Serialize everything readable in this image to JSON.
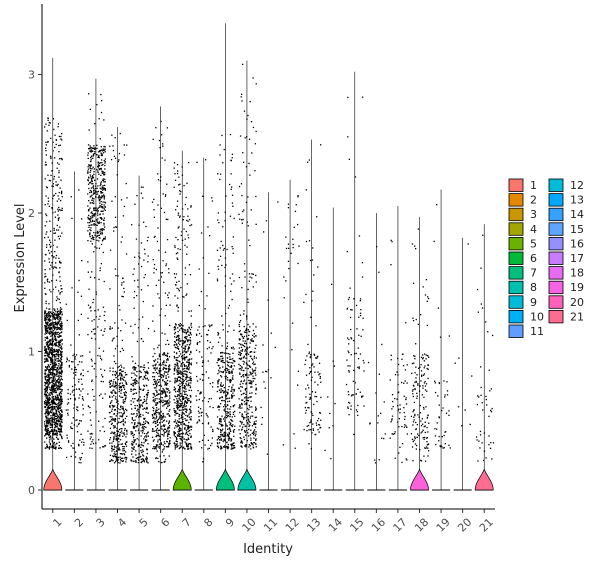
{
  "chart_data": {
    "type": "violin",
    "xlabel": "Identity",
    "ylabel": "Expression Level",
    "ylim": [
      -0.15,
      3.5
    ],
    "y_ticks": [
      0,
      1,
      2,
      3
    ],
    "grid": false,
    "legend_position": "right",
    "categories": [
      "1",
      "2",
      "3",
      "4",
      "5",
      "6",
      "7",
      "8",
      "9",
      "10",
      "11",
      "12",
      "13",
      "14",
      "15",
      "16",
      "17",
      "18",
      "19",
      "20",
      "21"
    ],
    "colors": [
      "#F8766D",
      "#E58700",
      "#C99800",
      "#A3A500",
      "#6BB100",
      "#00BA38",
      "#00BF7D",
      "#00C0AF",
      "#00BCD8",
      "#00B0F6",
      "#619CFF",
      "#B983FF",
      "#E76BF3",
      "#FD61D1",
      "#FF67A4",
      "#F8766D",
      "#E58700",
      "#C99800",
      "#A3A500",
      "#6BB100",
      "#00BA38"
    ],
    "legend_colors": [
      "#F8766D",
      "#E58700",
      "#C99800",
      "#A3A500",
      "#6BB100",
      "#00BA38",
      "#00BF7D",
      "#00C0AF",
      "#00BCD8",
      "#00B0F6",
      "#619CFF",
      "#00BCD8",
      "#00A9FF",
      "#35A2FF",
      "#5CA6FF",
      "#9590FF",
      "#C77CFF",
      "#E76BF3",
      "#F564E3",
      "#FF62BC",
      "#FF6C91"
    ],
    "series": [
      {
        "name": "1",
        "violin_top": 3.12,
        "bulb_height": 0.15,
        "bulb_width": 0.42,
        "n_points": 1500,
        "spread": [
          0.3,
          2.7
        ],
        "dense": [
          0.4,
          1.3
        ],
        "color": "#F8766D"
      },
      {
        "name": "2",
        "violin_top": 2.3,
        "bulb_height": 0.0,
        "bulb_width": 0.0,
        "n_points": 130,
        "spread": [
          0.2,
          2.3
        ],
        "dense": [
          0.3,
          1.0
        ],
        "color": "#E58700"
      },
      {
        "name": "3",
        "violin_top": 2.97,
        "bulb_height": 0.0,
        "bulb_width": 0.0,
        "n_points": 520,
        "spread": [
          0.3,
          2.9
        ],
        "dense": [
          1.8,
          2.5
        ],
        "color": "#C99800"
      },
      {
        "name": "4",
        "violin_top": 2.62,
        "bulb_height": 0.0,
        "bulb_width": 0.0,
        "n_points": 420,
        "spread": [
          0.2,
          2.6
        ],
        "dense": [
          0.2,
          0.9
        ],
        "color": "#B79F00"
      },
      {
        "name": "5",
        "violin_top": 2.27,
        "bulb_height": 0.0,
        "bulb_width": 0.0,
        "n_points": 360,
        "spread": [
          0.2,
          2.2
        ],
        "dense": [
          0.2,
          0.9
        ],
        "color": "#9DA700"
      },
      {
        "name": "6",
        "violin_top": 2.77,
        "bulb_height": 0.0,
        "bulb_width": 0.0,
        "n_points": 470,
        "spread": [
          0.2,
          2.7
        ],
        "dense": [
          0.3,
          1.0
        ],
        "color": "#00BA38"
      },
      {
        "name": "7",
        "violin_top": 2.45,
        "bulb_height": 0.15,
        "bulb_width": 0.42,
        "n_points": 700,
        "spread": [
          0.3,
          2.4
        ],
        "dense": [
          0.3,
          1.2
        ],
        "color": "#5BB300"
      },
      {
        "name": "8",
        "violin_top": 2.4,
        "bulb_height": 0.0,
        "bulb_width": 0.0,
        "n_points": 110,
        "spread": [
          0.2,
          2.4
        ],
        "dense": [
          0.3,
          1.2
        ],
        "color": "#00B81F"
      },
      {
        "name": "9",
        "violin_top": 3.37,
        "bulb_height": 0.15,
        "bulb_width": 0.42,
        "n_points": 420,
        "spread": [
          0.3,
          2.6
        ],
        "dense": [
          0.3,
          1.0
        ],
        "color": "#00BF7D"
      },
      {
        "name": "10",
        "violin_top": 3.1,
        "bulb_height": 0.15,
        "bulb_width": 0.42,
        "n_points": 420,
        "spread": [
          0.3,
          3.1
        ],
        "dense": [
          0.3,
          1.2
        ],
        "color": "#00C1A3"
      },
      {
        "name": "11",
        "violin_top": 2.15,
        "bulb_height": 0.0,
        "bulb_width": 0.0,
        "n_points": 18,
        "spread": [
          0.2,
          2.1
        ],
        "dense": [
          0.5,
          1.2
        ],
        "color": "#00BFC4"
      },
      {
        "name": "12",
        "violin_top": 2.24,
        "bulb_height": 0.0,
        "bulb_width": 0.0,
        "n_points": 30,
        "spread": [
          0.3,
          2.2
        ],
        "dense": [
          1.5,
          2.2
        ],
        "color": "#00BAE0"
      },
      {
        "name": "13",
        "violin_top": 2.53,
        "bulb_height": 0.0,
        "bulb_width": 0.0,
        "n_points": 110,
        "spread": [
          0.3,
          2.5
        ],
        "dense": [
          0.4,
          1.0
        ],
        "color": "#00B0F6"
      },
      {
        "name": "14",
        "violin_top": 2.04,
        "bulb_height": 0.0,
        "bulb_width": 0.0,
        "n_points": 10,
        "spread": [
          0.2,
          2.0
        ],
        "dense": [
          0.3,
          1.5
        ],
        "color": "#35A2FF"
      },
      {
        "name": "15",
        "violin_top": 3.02,
        "bulb_height": 0.0,
        "bulb_width": 0.0,
        "n_points": 85,
        "spread": [
          0.3,
          3.0
        ],
        "dense": [
          0.5,
          1.4
        ],
        "color": "#9590FF"
      },
      {
        "name": "16",
        "violin_top": 2.0,
        "bulb_height": 0.0,
        "bulb_width": 0.0,
        "n_points": 18,
        "spread": [
          0.2,
          2.0
        ],
        "dense": [
          0.3,
          1.0
        ],
        "color": "#C77CFF"
      },
      {
        "name": "17",
        "violin_top": 2.05,
        "bulb_height": 0.0,
        "bulb_width": 0.0,
        "n_points": 70,
        "spread": [
          0.2,
          2.0
        ],
        "dense": [
          0.4,
          1.0
        ],
        "color": "#E76BF3"
      },
      {
        "name": "18",
        "violin_top": 1.97,
        "bulb_height": 0.15,
        "bulb_width": 0.42,
        "n_points": 160,
        "spread": [
          0.2,
          1.9
        ],
        "dense": [
          0.3,
          1.0
        ],
        "color": "#FA62DB"
      },
      {
        "name": "19",
        "violin_top": 2.17,
        "bulb_height": 0.0,
        "bulb_width": 0.0,
        "n_points": 45,
        "spread": [
          0.2,
          2.1
        ],
        "dense": [
          0.3,
          0.8
        ],
        "color": "#FF62BC"
      },
      {
        "name": "20",
        "violin_top": 1.82,
        "bulb_height": 0.0,
        "bulb_width": 0.0,
        "n_points": 8,
        "spread": [
          0.2,
          1.8
        ],
        "dense": [
          0.3,
          1.0
        ],
        "color": "#FF6A98"
      },
      {
        "name": "21",
        "violin_top": 1.92,
        "bulb_height": 0.15,
        "bulb_width": 0.42,
        "n_points": 45,
        "spread": [
          0.2,
          1.9
        ],
        "dense": [
          0.2,
          0.8
        ],
        "color": "#FF6C91"
      }
    ]
  }
}
